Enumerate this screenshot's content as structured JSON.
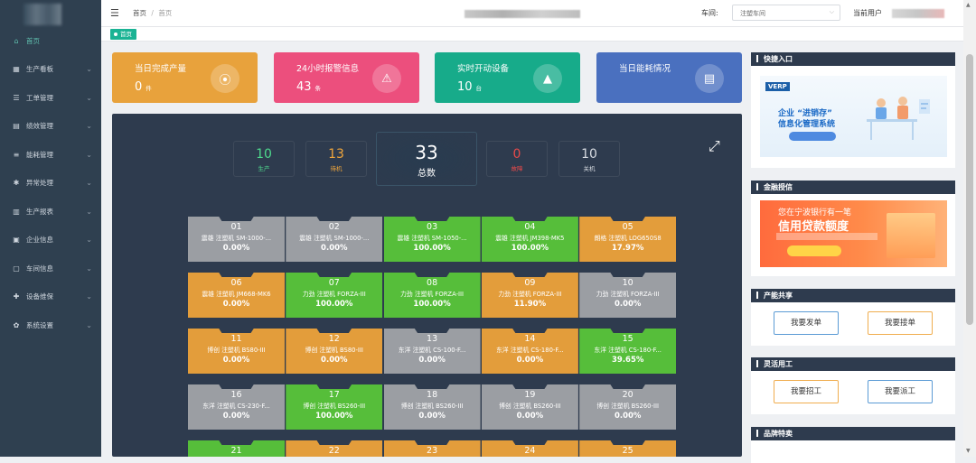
{
  "sidebar": {
    "items": [
      {
        "label": "首页",
        "icon": "home-icon",
        "glyph": "⌂",
        "active": true
      },
      {
        "label": "生产看板",
        "icon": "board-icon",
        "glyph": "▦"
      },
      {
        "label": "工单管理",
        "icon": "workorder-icon",
        "glyph": "☰"
      },
      {
        "label": "绩效管理",
        "icon": "performance-icon",
        "glyph": "▤"
      },
      {
        "label": "能耗管理",
        "icon": "energy-icon",
        "glyph": "≡"
      },
      {
        "label": "异常处理",
        "icon": "exception-icon",
        "glyph": "✱"
      },
      {
        "label": "生产报表",
        "icon": "report-icon",
        "glyph": "▥"
      },
      {
        "label": "企业信息",
        "icon": "company-icon",
        "glyph": "▣"
      },
      {
        "label": "车间信息",
        "icon": "workshop-icon",
        "glyph": "▢"
      },
      {
        "label": "设备维保",
        "icon": "maintenance-icon",
        "glyph": "✚"
      },
      {
        "label": "系统设置",
        "icon": "settings-icon",
        "glyph": "✿"
      }
    ]
  },
  "topbar": {
    "breadcrumb_home": "首页",
    "breadcrumb_sep": "/",
    "breadcrumb_current": "首页",
    "workshop_label": "车间:",
    "workshop_value": "注塑车间",
    "user_label": "当前用户"
  },
  "tags": {
    "active": "首页"
  },
  "cards": [
    {
      "title": "当日完成产量",
      "value": "0",
      "unit": "件",
      "color": "#e8a23c",
      "icon": "antenna-icon",
      "glyph": "⦿"
    },
    {
      "title": "24小时报警信息",
      "value": "43",
      "unit": "条",
      "color": "#ec4f7d",
      "icon": "alarm-icon",
      "glyph": "⚠"
    },
    {
      "title": "实时开动设备",
      "value": "10",
      "unit": "台",
      "color": "#17ab8a",
      "icon": "chart-icon",
      "glyph": "▲"
    },
    {
      "title": "当日能耗情况",
      "value": "",
      "unit": "",
      "color": "#4a70bf",
      "icon": "document-icon",
      "glyph": "▤"
    }
  ],
  "stats": {
    "production": {
      "value": "10",
      "label": "生产",
      "color": "#4ed98d"
    },
    "standby": {
      "value": "13",
      "label": "待机",
      "color": "#f0a63c"
    },
    "total": {
      "value": "33",
      "label": "总数"
    },
    "fault": {
      "value": "0",
      "label": "故障",
      "color": "#e74a4a"
    },
    "off": {
      "value": "10",
      "label": "关机",
      "color": "#d8dce2"
    }
  },
  "colors": {
    "grey": "#9b9ea3",
    "green": "#56be3a",
    "orange": "#e39d3b"
  },
  "machines": [
    {
      "no": "01",
      "name": "震雄 注塑机 SM-1000-...",
      "pct": "0.00%",
      "status": "grey"
    },
    {
      "no": "02",
      "name": "震雄 注塑机 SM-1000-...",
      "pct": "0.00%",
      "status": "grey"
    },
    {
      "no": "03",
      "name": "震雄 注塑机 SM-1050-...",
      "pct": "100.00%",
      "status": "green"
    },
    {
      "no": "04",
      "name": "震雄 注塑机 JM398-MK5",
      "pct": "100.00%",
      "status": "green"
    },
    {
      "no": "05",
      "name": "朗格 注塑机 LOG650S8",
      "pct": "17.97%",
      "status": "orange"
    },
    {
      "no": "06",
      "name": "震雄 注塑机 JM668-MK6",
      "pct": "0.00%",
      "status": "orange"
    },
    {
      "no": "07",
      "name": "力劲 注塑机 FORZA-III",
      "pct": "100.00%",
      "status": "green"
    },
    {
      "no": "08",
      "name": "力劲 注塑机 FORZA-III",
      "pct": "100.00%",
      "status": "green"
    },
    {
      "no": "09",
      "name": "力劲 注塑机 FORZA-III",
      "pct": "11.90%",
      "status": "orange"
    },
    {
      "no": "10",
      "name": "力劲 注塑机 FORZA-III",
      "pct": "0.00%",
      "status": "grey"
    },
    {
      "no": "11",
      "name": "博创 注塑机 BS80-III",
      "pct": "0.00%",
      "status": "orange"
    },
    {
      "no": "12",
      "name": "博创 注塑机 BS80-III",
      "pct": "0.00%",
      "status": "orange"
    },
    {
      "no": "13",
      "name": "东洋 注塑机 CS-100-F...",
      "pct": "0.00%",
      "status": "grey"
    },
    {
      "no": "14",
      "name": "东洋 注塑机 CS-180-F...",
      "pct": "0.00%",
      "status": "orange"
    },
    {
      "no": "15",
      "name": "东洋 注塑机 CS-180-F...",
      "pct": "39.65%",
      "status": "green"
    },
    {
      "no": "16",
      "name": "东洋 注塑机 CS-230-F...",
      "pct": "0.00%",
      "status": "grey"
    },
    {
      "no": "17",
      "name": "博创 注塑机 BS260-III",
      "pct": "100.00%",
      "status": "green"
    },
    {
      "no": "18",
      "name": "博创 注塑机 BS260-III",
      "pct": "0.00%",
      "status": "grey"
    },
    {
      "no": "19",
      "name": "博创 注塑机 BS260-III",
      "pct": "0.00%",
      "status": "grey"
    },
    {
      "no": "20",
      "name": "博创 注塑机 BS260-III",
      "pct": "0.00%",
      "status": "grey"
    },
    {
      "no": "21",
      "name": "",
      "pct": "",
      "status": "green"
    },
    {
      "no": "22",
      "name": "",
      "pct": "",
      "status": "orange"
    },
    {
      "no": "23",
      "name": "",
      "pct": "",
      "status": "orange"
    },
    {
      "no": "24",
      "name": "",
      "pct": "",
      "status": "orange"
    },
    {
      "no": "25",
      "name": "",
      "pct": "",
      "status": "orange"
    }
  ],
  "right": {
    "quick": {
      "title": "快捷入口",
      "ad_logo": "VERP",
      "ad_line1": "企业 “进销存”",
      "ad_line2": "信息化管理系统"
    },
    "finance": {
      "title": "金融授信",
      "ad_line1": "您在宁波银行有一笔",
      "ad_line2": "信用贷款额度"
    },
    "capacity": {
      "title": "产能共享",
      "btn1": "我要发单",
      "btn2": "我要接单"
    },
    "flex": {
      "title": "灵活用工",
      "btn1": "我要招工",
      "btn2": "我要派工"
    },
    "brand": {
      "title": "品牌特卖"
    }
  }
}
